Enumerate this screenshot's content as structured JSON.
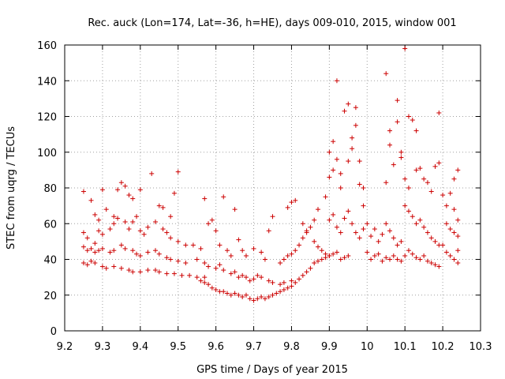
{
  "chart_data": {
    "type": "scatter",
    "title": "Rec. auck (Lon=174, Lat=-36, h=HE), days 009-010, 2015, window 001",
    "xlabel": "GPS time / Days of year 2015",
    "ylabel": "STEC from uqrg / TECUs",
    "xlim": [
      9.2,
      10.3
    ],
    "ylim": [
      0,
      160
    ],
    "xticks": [
      "9.2",
      "9.3",
      "9.4",
      "9.5",
      "9.6",
      "9.7",
      "9.8",
      "9.9",
      "10",
      "10.1",
      "10.2",
      "10.3"
    ],
    "yticks": [
      "0",
      "20",
      "40",
      "60",
      "80",
      "100",
      "120",
      "140",
      "160"
    ],
    "grid": true,
    "marker": "+",
    "color": "#cc0000",
    "points": [
      [
        9.25,
        78
      ],
      [
        9.27,
        73
      ],
      [
        9.28,
        65
      ],
      [
        9.29,
        62
      ],
      [
        9.3,
        79
      ],
      [
        9.31,
        68
      ],
      [
        9.33,
        64
      ],
      [
        9.34,
        79
      ],
      [
        9.35,
        83
      ],
      [
        9.36,
        81
      ],
      [
        9.37,
        76
      ],
      [
        9.38,
        74
      ],
      [
        9.39,
        64
      ],
      [
        9.4,
        79
      ],
      [
        9.43,
        88
      ],
      [
        9.45,
        70
      ],
      [
        9.46,
        69
      ],
      [
        9.48,
        64
      ],
      [
        9.49,
        77
      ],
      [
        9.5,
        89
      ],
      [
        9.25,
        55
      ],
      [
        9.26,
        52
      ],
      [
        9.28,
        49
      ],
      [
        9.29,
        56
      ],
      [
        9.3,
        54
      ],
      [
        9.32,
        57
      ],
      [
        9.33,
        60
      ],
      [
        9.34,
        63
      ],
      [
        9.36,
        61
      ],
      [
        9.37,
        57
      ],
      [
        9.38,
        61
      ],
      [
        9.4,
        56
      ],
      [
        9.41,
        54
      ],
      [
        9.42,
        58
      ],
      [
        9.44,
        61
      ],
      [
        9.46,
        57
      ],
      [
        9.47,
        55
      ],
      [
        9.48,
        52
      ],
      [
        9.5,
        50
      ],
      [
        9.52,
        48
      ],
      [
        9.25,
        47
      ],
      [
        9.26,
        45
      ],
      [
        9.27,
        46
      ],
      [
        9.28,
        44
      ],
      [
        9.29,
        45
      ],
      [
        9.3,
        46
      ],
      [
        9.32,
        44
      ],
      [
        9.33,
        45
      ],
      [
        9.35,
        48
      ],
      [
        9.36,
        46
      ],
      [
        9.38,
        45
      ],
      [
        9.39,
        43
      ],
      [
        9.4,
        42
      ],
      [
        9.42,
        44
      ],
      [
        9.44,
        45
      ],
      [
        9.45,
        43
      ],
      [
        9.47,
        41
      ],
      [
        9.48,
        40
      ],
      [
        9.5,
        39
      ],
      [
        9.52,
        38
      ],
      [
        9.25,
        38
      ],
      [
        9.26,
        37
      ],
      [
        9.27,
        39
      ],
      [
        9.28,
        38
      ],
      [
        9.3,
        36
      ],
      [
        9.31,
        35
      ],
      [
        9.33,
        36
      ],
      [
        9.35,
        35
      ],
      [
        9.37,
        34
      ],
      [
        9.38,
        33
      ],
      [
        9.4,
        33
      ],
      [
        9.42,
        34
      ],
      [
        9.44,
        34
      ],
      [
        9.45,
        33
      ],
      [
        9.47,
        32
      ],
      [
        9.49,
        32
      ],
      [
        9.51,
        31
      ],
      [
        9.53,
        31
      ],
      [
        9.55,
        30
      ],
      [
        9.57,
        30
      ],
      [
        9.54,
        48
      ],
      [
        9.56,
        46
      ],
      [
        9.57,
        74
      ],
      [
        9.58,
        60
      ],
      [
        9.59,
        62
      ],
      [
        9.6,
        56
      ],
      [
        9.61,
        48
      ],
      [
        9.62,
        75
      ],
      [
        9.63,
        45
      ],
      [
        9.64,
        42
      ],
      [
        9.65,
        68
      ],
      [
        9.66,
        51
      ],
      [
        9.67,
        45
      ],
      [
        9.68,
        42
      ],
      [
        9.7,
        46
      ],
      [
        9.72,
        44
      ],
      [
        9.73,
        40
      ],
      [
        9.74,
        56
      ],
      [
        9.75,
        64
      ],
      [
        9.77,
        38
      ],
      [
        9.55,
        40
      ],
      [
        9.57,
        38
      ],
      [
        9.58,
        36
      ],
      [
        9.6,
        35
      ],
      [
        9.61,
        37
      ],
      [
        9.62,
        34
      ],
      [
        9.64,
        32
      ],
      [
        9.65,
        33
      ],
      [
        9.66,
        30
      ],
      [
        9.67,
        31
      ],
      [
        9.68,
        30
      ],
      [
        9.69,
        28
      ],
      [
        9.7,
        29
      ],
      [
        9.71,
        31
      ],
      [
        9.72,
        30
      ],
      [
        9.74,
        28
      ],
      [
        9.75,
        27
      ],
      [
        9.77,
        26
      ],
      [
        9.78,
        27
      ],
      [
        9.8,
        28
      ],
      [
        9.56,
        28
      ],
      [
        9.57,
        27
      ],
      [
        9.58,
        26
      ],
      [
        9.59,
        24
      ],
      [
        9.6,
        23
      ],
      [
        9.61,
        22
      ],
      [
        9.62,
        22
      ],
      [
        9.63,
        21
      ],
      [
        9.64,
        20
      ],
      [
        9.65,
        21
      ],
      [
        9.66,
        20
      ],
      [
        9.67,
        19
      ],
      [
        9.68,
        20
      ],
      [
        9.69,
        18
      ],
      [
        9.7,
        17
      ],
      [
        9.71,
        18
      ],
      [
        9.72,
        19
      ],
      [
        9.73,
        18
      ],
      [
        9.74,
        19
      ],
      [
        9.75,
        20
      ],
      [
        9.76,
        21
      ],
      [
        9.77,
        22
      ],
      [
        9.78,
        23
      ],
      [
        9.79,
        24
      ],
      [
        9.8,
        25
      ],
      [
        9.81,
        27
      ],
      [
        9.82,
        29
      ],
      [
        9.83,
        31
      ],
      [
        9.84,
        33
      ],
      [
        9.85,
        35
      ],
      [
        9.78,
        40
      ],
      [
        9.79,
        42
      ],
      [
        9.8,
        43
      ],
      [
        9.81,
        45
      ],
      [
        9.82,
        48
      ],
      [
        9.83,
        52
      ],
      [
        9.84,
        55
      ],
      [
        9.85,
        58
      ],
      [
        9.86,
        62
      ],
      [
        9.87,
        68
      ],
      [
        9.79,
        69
      ],
      [
        9.8,
        72
      ],
      [
        9.81,
        73
      ],
      [
        9.83,
        60
      ],
      [
        9.84,
        56
      ],
      [
        9.86,
        50
      ],
      [
        9.87,
        47
      ],
      [
        9.88,
        45
      ],
      [
        9.89,
        43
      ],
      [
        9.9,
        42
      ],
      [
        9.86,
        38
      ],
      [
        9.87,
        39
      ],
      [
        9.88,
        40
      ],
      [
        9.89,
        41
      ],
      [
        9.9,
        42
      ],
      [
        9.91,
        43
      ],
      [
        9.92,
        44
      ],
      [
        9.93,
        40
      ],
      [
        9.94,
        41
      ],
      [
        9.95,
        42
      ],
      [
        9.89,
        75
      ],
      [
        9.9,
        86
      ],
      [
        9.9,
        100
      ],
      [
        9.91,
        106
      ],
      [
        9.91,
        90
      ],
      [
        9.92,
        96
      ],
      [
        9.92,
        140
      ],
      [
        9.93,
        88
      ],
      [
        9.93,
        80
      ],
      [
        9.94,
        123
      ],
      [
        9.95,
        127
      ],
      [
        9.95,
        95
      ],
      [
        9.96,
        102
      ],
      [
        9.96,
        108
      ],
      [
        9.97,
        125
      ],
      [
        9.97,
        115
      ],
      [
        9.98,
        95
      ],
      [
        9.98,
        82
      ],
      [
        9.99,
        80
      ],
      [
        9.99,
        70
      ],
      [
        9.9,
        62
      ],
      [
        9.91,
        65
      ],
      [
        9.92,
        58
      ],
      [
        9.93,
        55
      ],
      [
        9.94,
        63
      ],
      [
        9.95,
        67
      ],
      [
        9.96,
        60
      ],
      [
        9.97,
        55
      ],
      [
        9.98,
        52
      ],
      [
        9.99,
        57
      ],
      [
        10.0,
        60
      ],
      [
        10.01,
        53
      ],
      [
        10.02,
        57
      ],
      [
        10.03,
        50
      ],
      [
        10.04,
        54
      ],
      [
        10.05,
        60
      ],
      [
        10.06,
        56
      ],
      [
        10.07,
        52
      ],
      [
        10.08,
        48
      ],
      [
        10.09,
        50
      ],
      [
        10.0,
        44
      ],
      [
        10.01,
        40
      ],
      [
        10.02,
        42
      ],
      [
        10.03,
        43
      ],
      [
        10.04,
        39
      ],
      [
        10.05,
        41
      ],
      [
        10.06,
        40
      ],
      [
        10.07,
        42
      ],
      [
        10.08,
        40
      ],
      [
        10.09,
        39
      ],
      [
        10.05,
        144
      ],
      [
        10.05,
        83
      ],
      [
        10.06,
        112
      ],
      [
        10.06,
        104
      ],
      [
        10.07,
        93
      ],
      [
        10.08,
        129
      ],
      [
        10.08,
        117
      ],
      [
        10.09,
        100
      ],
      [
        10.09,
        97
      ],
      [
        10.1,
        158
      ],
      [
        10.1,
        85
      ],
      [
        10.11,
        80
      ],
      [
        10.11,
        120
      ],
      [
        10.12,
        118
      ],
      [
        10.13,
        112
      ],
      [
        10.13,
        90
      ],
      [
        10.14,
        91
      ],
      [
        10.15,
        85
      ],
      [
        10.16,
        83
      ],
      [
        10.17,
        78
      ],
      [
        10.1,
        70
      ],
      [
        10.11,
        67
      ],
      [
        10.12,
        64
      ],
      [
        10.13,
        60
      ],
      [
        10.14,
        62
      ],
      [
        10.15,
        58
      ],
      [
        10.16,
        55
      ],
      [
        10.17,
        52
      ],
      [
        10.18,
        50
      ],
      [
        10.19,
        48
      ],
      [
        10.1,
        42
      ],
      [
        10.11,
        45
      ],
      [
        10.12,
        43
      ],
      [
        10.13,
        41
      ],
      [
        10.14,
        40
      ],
      [
        10.15,
        42
      ],
      [
        10.16,
        39
      ],
      [
        10.17,
        38
      ],
      [
        10.18,
        37
      ],
      [
        10.19,
        36
      ],
      [
        10.18,
        92
      ],
      [
        10.19,
        94
      ],
      [
        10.19,
        122
      ],
      [
        10.2,
        76
      ],
      [
        10.21,
        70
      ],
      [
        10.22,
        77
      ],
      [
        10.23,
        85
      ],
      [
        10.24,
        90
      ],
      [
        10.23,
        68
      ],
      [
        10.24,
        62
      ],
      [
        10.2,
        48
      ],
      [
        10.21,
        44
      ],
      [
        10.22,
        42
      ],
      [
        10.23,
        40
      ],
      [
        10.24,
        38
      ],
      [
        10.21,
        60
      ],
      [
        10.22,
        57
      ],
      [
        10.23,
        55
      ],
      [
        10.24,
        53
      ],
      [
        10.24,
        45
      ]
    ]
  }
}
